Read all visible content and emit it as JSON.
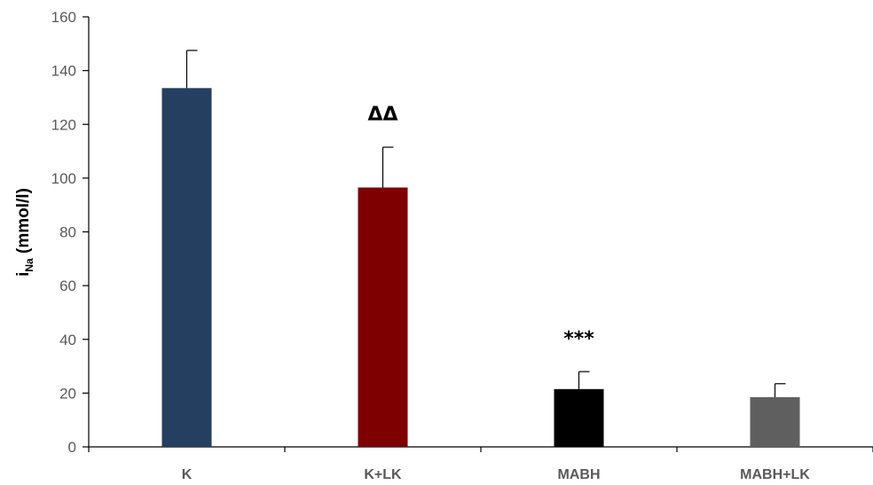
{
  "chart_data": {
    "type": "bar",
    "categories": [
      "K",
      "K+LK",
      "MABH",
      "MABH+LK"
    ],
    "values": [
      133.5,
      96.5,
      21.5,
      18.5
    ],
    "errors": [
      14,
      15,
      6.5,
      5
    ],
    "colors": [
      "#243f60",
      "#7f0000",
      "#000000",
      "#5f5f5f"
    ],
    "annotations": [
      "",
      "ΔΔ",
      "***",
      ""
    ],
    "ylabel": {
      "main": "i",
      "sub": "Na",
      "rest": " (mmol/l)"
    },
    "ylim": [
      0,
      160
    ],
    "yticks": [
      0,
      20,
      40,
      60,
      80,
      100,
      120,
      140,
      160
    ],
    "grid": false
  }
}
